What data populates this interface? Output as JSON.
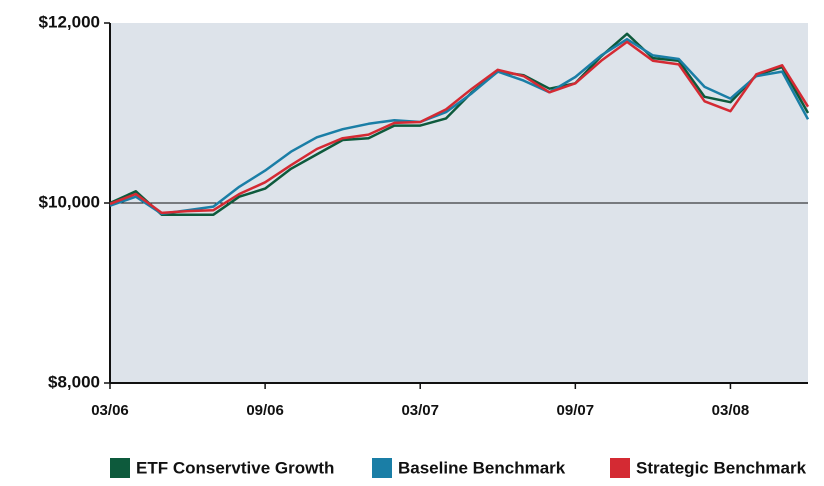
{
  "chart_data": {
    "type": "line",
    "categories": [
      "03/06",
      null,
      null,
      null,
      null,
      null,
      "09/06",
      null,
      null,
      null,
      null,
      null,
      "03/07",
      null,
      null,
      null,
      null,
      null,
      "09/07",
      null,
      null,
      null,
      null,
      null,
      "03/08",
      null,
      null,
      null
    ],
    "series": [
      {
        "name": "ETF Conservtive Growth",
        "color": "#0d5a3c",
        "values": [
          10000,
          10130,
          9870,
          9870,
          9870,
          10070,
          10160,
          10380,
          10540,
          10700,
          10720,
          10860,
          10860,
          10940,
          11230,
          11460,
          11420,
          11270,
          11330,
          11630,
          11880,
          11610,
          11580,
          11180,
          11120,
          11420,
          11510,
          11000
        ]
      },
      {
        "name": "Baseline Benchmark",
        "color": "#1a7ea6",
        "values": [
          9970,
          10070,
          9880,
          9920,
          9960,
          10180,
          10360,
          10570,
          10730,
          10820,
          10880,
          10920,
          10900,
          11010,
          11220,
          11460,
          11360,
          11230,
          11400,
          11640,
          11820,
          11640,
          11600,
          11290,
          11160,
          11410,
          11460,
          10930
        ]
      },
      {
        "name": "Strategic Benchmark",
        "color": "#d42a33",
        "values": [
          9990,
          10100,
          9890,
          9910,
          9920,
          10100,
          10230,
          10420,
          10600,
          10720,
          10760,
          10890,
          10900,
          11040,
          11270,
          11480,
          11410,
          11230,
          11330,
          11580,
          11790,
          11580,
          11540,
          11130,
          11020,
          11430,
          11530,
          11070
        ]
      }
    ],
    "ylim": [
      8000,
      12000
    ],
    "yticks": [
      {
        "value": 8000,
        "label": "$8,000"
      },
      {
        "value": 10000,
        "label": "$10,000"
      },
      {
        "value": 12000,
        "label": "$12,000"
      }
    ],
    "grid": true,
    "legend": "bottom"
  }
}
